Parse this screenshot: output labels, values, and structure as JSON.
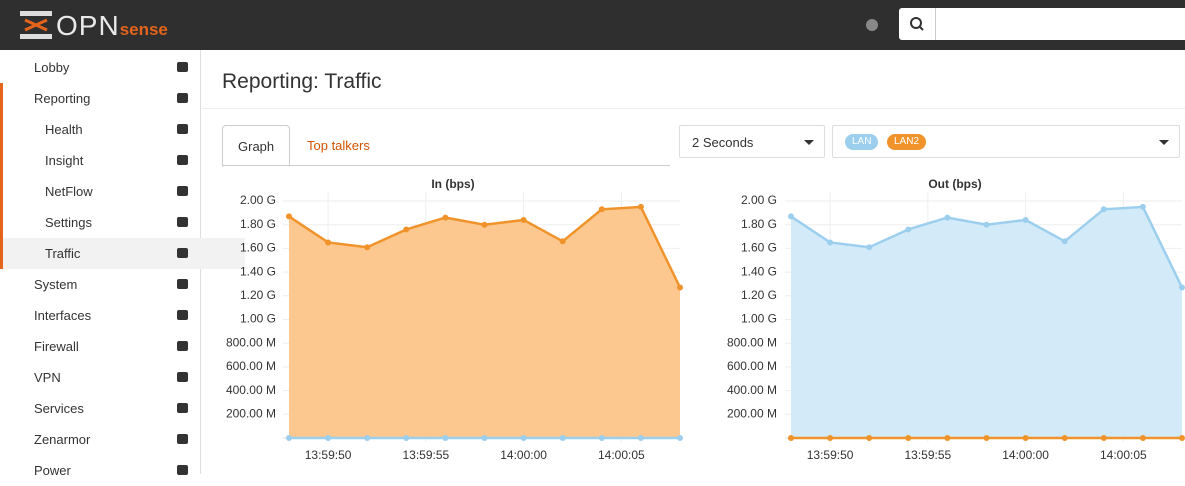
{
  "header": {
    "logo_main": "OPN",
    "logo_sub": "sense"
  },
  "sidebar": {
    "menu": [
      {
        "label": "Lobby"
      },
      {
        "label": "Reporting",
        "children": [
          "Health",
          "Insight",
          "NetFlow",
          "Settings",
          "Traffic"
        ]
      },
      {
        "label": "System"
      },
      {
        "label": "Interfaces"
      },
      {
        "label": "Firewall"
      },
      {
        "label": "VPN"
      },
      {
        "label": "Services"
      },
      {
        "label": "Zenarmor"
      },
      {
        "label": "Power"
      }
    ]
  },
  "page": {
    "title": "Reporting: Traffic",
    "tabs": [
      "Graph",
      "Top talkers"
    ],
    "interval": "2 Seconds",
    "interfaces": [
      "LAN",
      "LAN2"
    ]
  },
  "chart_data": [
    {
      "type": "area",
      "title": "In (bps)",
      "x": [
        "13:59:48",
        "13:59:50",
        "13:59:52",
        "13:59:54",
        "13:59:56",
        "13:59:58",
        "14:00:00",
        "14:00:02",
        "14:00:04",
        "14:00:06",
        "14:00:08"
      ],
      "series": [
        {
          "color": "#9ccfee",
          "fill": "#d3ebf8",
          "values": [
            0,
            0,
            0,
            0,
            0,
            0,
            0,
            0,
            0,
            0,
            0
          ]
        },
        {
          "color": "#f0932b",
          "fill": "#fcc88f",
          "values": [
            1870000000,
            1650000000,
            1610000000,
            1760000000,
            1860000000,
            1800000000,
            1840000000,
            1660000000,
            1930000000,
            1950000000,
            1270000000
          ]
        }
      ],
      "xlim": [
        "13:59:48",
        "14:00:08"
      ],
      "xticks": [
        "13:59:50",
        "13:59:55",
        "14:00:00",
        "14:00:05"
      ],
      "ylim": [
        0,
        2000000000
      ],
      "yticks": [
        {
          "value": 200000000,
          "label": "200.00 M"
        },
        {
          "value": 400000000,
          "label": "400.00 M"
        },
        {
          "value": 600000000,
          "label": "600.00 M"
        },
        {
          "value": 800000000,
          "label": "800.00 M"
        },
        {
          "value": 1000000000,
          "label": "1.00 G"
        },
        {
          "value": 1200000000,
          "label": "1.20 G"
        },
        {
          "value": 1400000000,
          "label": "1.40 G"
        },
        {
          "value": 1600000000,
          "label": "1.60 G"
        },
        {
          "value": 1800000000,
          "label": "1.80 G"
        },
        {
          "value": 2000000000,
          "label": "2.00 G"
        }
      ],
      "grid": true
    },
    {
      "type": "area",
      "title": "Out (bps)",
      "x": [
        "13:59:48",
        "13:59:50",
        "13:59:52",
        "13:59:54",
        "13:59:56",
        "13:59:58",
        "14:00:00",
        "14:00:02",
        "14:00:04",
        "14:00:06",
        "14:00:08"
      ],
      "series": [
        {
          "color": "#9ccfee",
          "fill": "#d3ebf8",
          "values": [
            1870000000,
            1650000000,
            1610000000,
            1760000000,
            1860000000,
            1800000000,
            1840000000,
            1660000000,
            1930000000,
            1950000000,
            1270000000
          ]
        },
        {
          "color": "#f0932b",
          "fill": "#fcc88f",
          "values": [
            0,
            0,
            0,
            0,
            0,
            0,
            0,
            0,
            0,
            0,
            0
          ]
        }
      ],
      "xlim": [
        "13:59:48",
        "14:00:08"
      ],
      "xticks": [
        "13:59:50",
        "13:59:55",
        "14:00:00",
        "14:00:05"
      ],
      "ylim": [
        0,
        2000000000
      ],
      "yticks": [
        {
          "value": 200000000,
          "label": "200.00 M"
        },
        {
          "value": 400000000,
          "label": "400.00 M"
        },
        {
          "value": 600000000,
          "label": "600.00 M"
        },
        {
          "value": 800000000,
          "label": "800.00 M"
        },
        {
          "value": 1000000000,
          "label": "1.00 G"
        },
        {
          "value": 1200000000,
          "label": "1.20 G"
        },
        {
          "value": 1400000000,
          "label": "1.40 G"
        },
        {
          "value": 1600000000,
          "label": "1.60 G"
        },
        {
          "value": 1800000000,
          "label": "1.80 G"
        },
        {
          "value": 2000000000,
          "label": "2.00 G"
        }
      ],
      "grid": true
    }
  ]
}
